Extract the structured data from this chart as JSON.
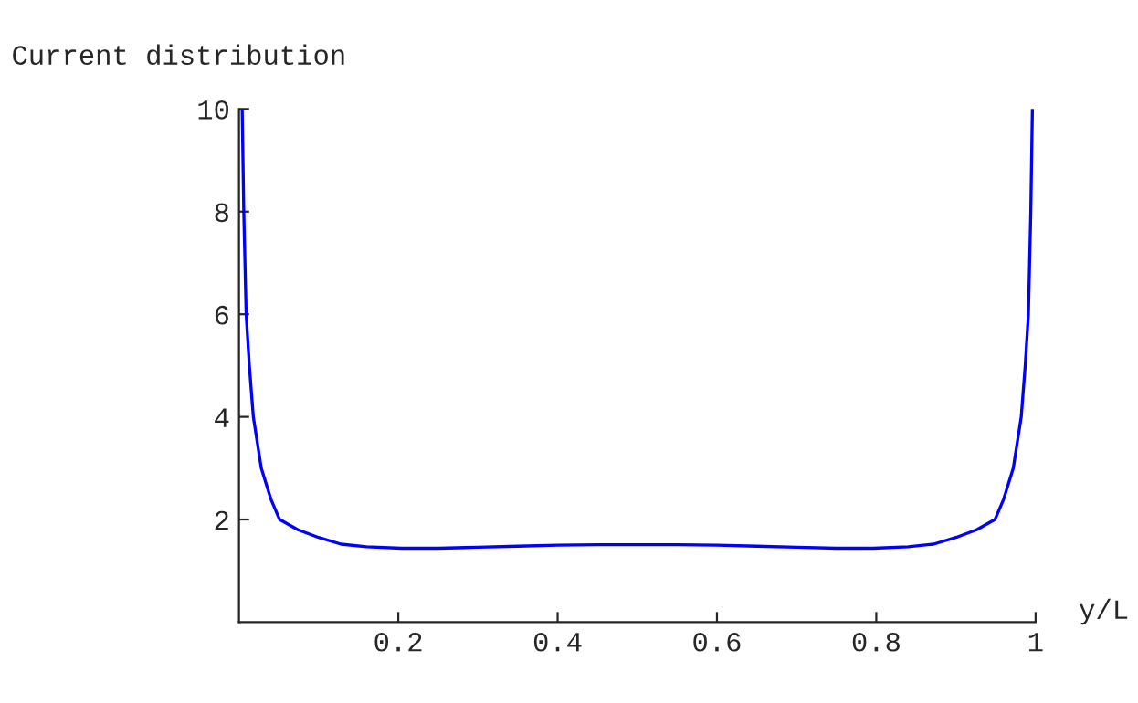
{
  "chart_data": {
    "type": "line",
    "ylabel": "Current distribution",
    "xlabel": "y/L",
    "x": [
      0.004,
      0.006,
      0.009,
      0.013,
      0.018,
      0.028,
      0.04,
      0.051,
      0.074,
      0.1,
      0.128,
      0.16,
      0.204,
      0.25,
      0.3,
      0.35,
      0.4,
      0.45,
      0.5,
      0.55,
      0.6,
      0.65,
      0.7,
      0.75,
      0.796,
      0.84,
      0.872,
      0.9,
      0.926,
      0.949,
      0.96,
      0.972,
      0.982,
      0.987,
      0.991,
      0.994,
      0.996
    ],
    "series": [
      {
        "color": "#0000ff",
        "values": [
          10,
          8,
          6,
          5,
          4,
          3,
          2.4,
          2,
          1.8,
          1.65,
          1.52,
          1.47,
          1.44,
          1.44,
          1.46,
          1.48,
          1.5,
          1.51,
          1.51,
          1.51,
          1.5,
          1.48,
          1.46,
          1.44,
          1.44,
          1.47,
          1.52,
          1.65,
          1.8,
          2,
          2.4,
          3,
          4,
          5,
          6,
          8,
          10
        ]
      }
    ],
    "xlim": [
      0,
      1.0
    ],
    "ylim": [
      0,
      10
    ],
    "xticks": [
      0.2,
      0.4,
      0.6,
      0.8,
      1
    ],
    "yticks": [
      2,
      4,
      6,
      8,
      10
    ],
    "grid": false,
    "legend": false
  }
}
